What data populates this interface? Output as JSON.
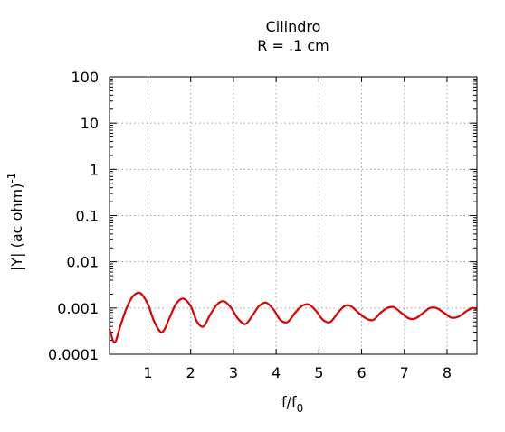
{
  "chart_data": {
    "type": "line",
    "title": "Cilindro",
    "subtitle": "R = .1 cm",
    "xlabel_main": "f/f",
    "xlabel_sub": "0",
    "ylabel_main": "|Y| (ac ohm)",
    "ylabel_sup": "-1",
    "xlim": [
      0.1,
      8.7
    ],
    "ylim": [
      0.0001,
      100
    ],
    "yscale": "log",
    "grid": true,
    "x_ticks": [
      1,
      2,
      3,
      4,
      5,
      6,
      7,
      8
    ],
    "x_tick_labels": [
      "1",
      "2",
      "3",
      "4",
      "5",
      "6",
      "7",
      "8"
    ],
    "y_ticks": [
      0.0001,
      0.001,
      0.01,
      0.1,
      1,
      10,
      100
    ],
    "y_tick_labels": [
      "0.0001",
      "0.001",
      "0.01",
      "0.1",
      "1",
      "10",
      "100"
    ],
    "line_color": "#e00000",
    "series": [
      {
        "x": [
          0.1,
          0.22,
          0.35,
          0.5,
          0.65,
          0.82,
          1.0,
          1.15,
          1.33,
          1.5,
          1.65,
          1.82,
          2.0,
          2.15,
          2.3,
          2.45,
          2.62,
          2.78,
          2.95,
          3.1,
          3.28,
          3.45,
          3.6,
          3.77,
          3.95,
          4.1,
          4.27,
          4.45,
          4.6,
          4.76,
          4.92,
          5.1,
          5.27,
          5.45,
          5.6,
          5.75,
          5.92,
          6.1,
          6.27,
          6.45,
          6.6,
          6.75,
          6.92,
          7.1,
          7.27,
          7.45,
          7.6,
          7.75,
          7.92,
          8.1,
          8.27,
          8.45,
          8.6,
          8.7
        ],
        "y": [
          0.00035,
          0.00018,
          0.0004,
          0.001,
          0.0018,
          0.0021,
          0.0012,
          0.0005,
          0.0003,
          0.0006,
          0.0012,
          0.0016,
          0.0011,
          0.0005,
          0.0004,
          0.0007,
          0.0012,
          0.0014,
          0.001,
          0.0006,
          0.00045,
          0.0007,
          0.0011,
          0.0013,
          0.0009,
          0.00055,
          0.0005,
          0.0008,
          0.0011,
          0.0012,
          0.0009,
          0.00055,
          0.0005,
          0.0008,
          0.0011,
          0.0011,
          0.0008,
          0.0006,
          0.00055,
          0.0008,
          0.001,
          0.00105,
          0.0008,
          0.0006,
          0.0006,
          0.0008,
          0.001,
          0.001,
          0.0008,
          0.00062,
          0.00065,
          0.00085,
          0.001,
          0.00095
        ]
      }
    ]
  }
}
